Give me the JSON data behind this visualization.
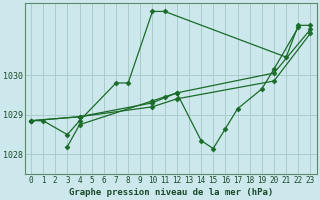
{
  "background_color": "#cde8ec",
  "grid_color": "#aacccc",
  "line_color": "#1a6b2a",
  "title": "Graphe pression niveau de la mer (hPa)",
  "xlim": [
    -0.5,
    23.5
  ],
  "ylim": [
    1027.5,
    1031.8
  ],
  "yticks": [
    1028,
    1029,
    1030
  ],
  "xticks": [
    0,
    1,
    2,
    3,
    4,
    5,
    6,
    7,
    8,
    9,
    10,
    11,
    12,
    13,
    14,
    15,
    16,
    17,
    18,
    19,
    20,
    21,
    22,
    23
  ],
  "s1_x": [
    0,
    1,
    3,
    4,
    7,
    8,
    10,
    11,
    21,
    22,
    23
  ],
  "s1_y": [
    1028.85,
    1028.85,
    1028.5,
    1028.85,
    1029.8,
    1029.8,
    1031.6,
    1031.6,
    1030.45,
    1031.25,
    1031.25
  ],
  "s2_x": [
    3,
    4,
    10,
    11,
    12,
    14,
    15,
    16,
    17,
    19,
    20,
    22
  ],
  "s2_y": [
    1028.2,
    1028.75,
    1029.35,
    1029.45,
    1029.55,
    1028.35,
    1028.15,
    1028.65,
    1029.15,
    1029.65,
    1030.15,
    1031.2
  ],
  "s3_x": [
    0,
    4,
    10,
    12,
    20,
    23
  ],
  "s3_y": [
    1028.85,
    1028.95,
    1029.2,
    1029.4,
    1029.85,
    1031.05
  ],
  "s4_x": [
    0,
    4,
    10,
    12,
    20,
    23
  ],
  "s4_y": [
    1028.85,
    1028.95,
    1029.3,
    1029.55,
    1030.05,
    1031.15
  ],
  "title_fontsize": 6.5,
  "tick_fontsize": 5.5,
  "ytick_fontsize": 6.0,
  "linewidth": 0.9,
  "markersize": 2.5
}
